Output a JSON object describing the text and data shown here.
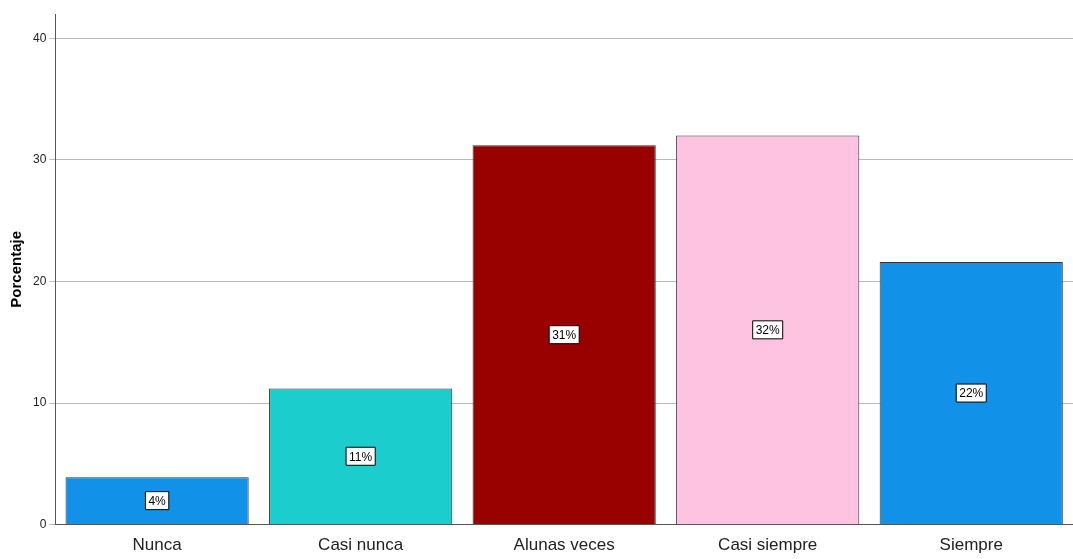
{
  "chart_data": {
    "type": "bar",
    "ylabel": "Porcentaje",
    "categories": [
      "Nunca",
      "Casi nunca",
      "Alunas veces",
      "Casi siempre",
      "Siempre"
    ],
    "values": [
      3.9,
      11.2,
      31.2,
      32.0,
      21.6
    ],
    "colors": [
      "#1192e8",
      "#1bcdcd",
      "#990000",
      "#fdc3e0",
      "#1192e8"
    ],
    "value_labels": [
      "4%",
      "11%",
      "31%",
      "32%",
      "22%"
    ],
    "ylim": [
      0,
      42
    ],
    "yticks": [
      0,
      10,
      20,
      30,
      40
    ],
    "grid": "y",
    "legend": false
  }
}
